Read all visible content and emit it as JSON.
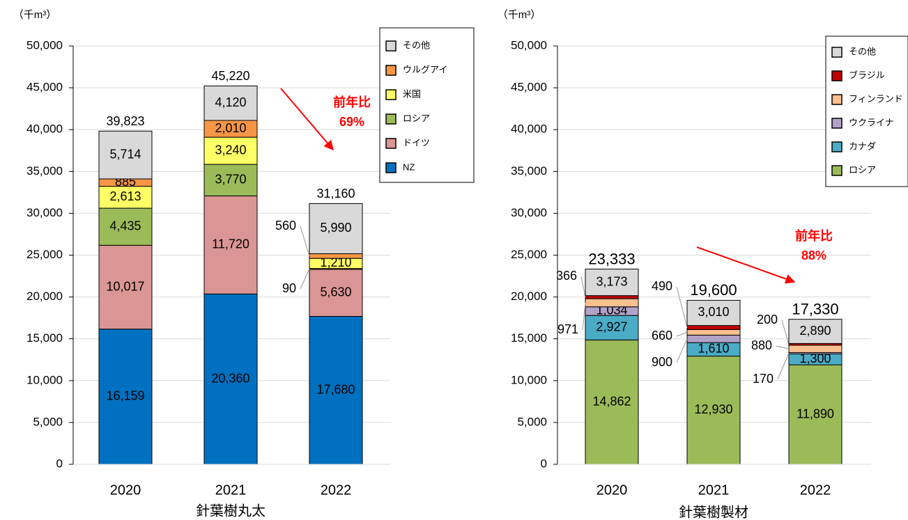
{
  "chart_data": [
    {
      "type": "bar",
      "stacked": true,
      "xlabel": "針葉樹丸太",
      "ylabel": "（千m³）",
      "categories": [
        "2020",
        "2021",
        "2022"
      ],
      "series": [
        {
          "name": "NZ",
          "color": "#0070c0",
          "values": [
            16159,
            20360,
            17680
          ],
          "value_labels": [
            "16,159",
            "20,360",
            "17,680"
          ]
        },
        {
          "name": "ドイツ",
          "color": "#da9694",
          "values": [
            10017,
            11720,
            5630
          ],
          "value_labels": [
            "10,017",
            "11,720",
            "5,630"
          ]
        },
        {
          "name": "ロシア",
          "color": "#9bbb59",
          "values": [
            4435,
            3770,
            90
          ],
          "value_labels": [
            "4,435",
            "3,770",
            "90"
          ]
        },
        {
          "name": "米国",
          "color": "#ffff66",
          "values": [
            2613,
            3240,
            1210
          ],
          "value_labels": [
            "2,613",
            "3,240",
            "1,210"
          ]
        },
        {
          "name": "ウルグアイ",
          "color": "#f79646",
          "values": [
            885,
            2010,
            560
          ],
          "value_labels": [
            "885",
            "2,010",
            "560"
          ]
        },
        {
          "name": "その他",
          "color": "#d9d9d9",
          "values": [
            5714,
            4120,
            5990
          ],
          "value_labels": [
            "5,714",
            "4,120",
            "5,990"
          ]
        }
      ],
      "totals": [
        39823,
        45220,
        31160
      ],
      "total_labels": [
        "39,823",
        "45,220",
        "31,160"
      ],
      "annotation": [
        "前年比",
        "69%"
      ],
      "ylim": [
        0,
        50000
      ],
      "yticks": [
        0,
        {
          "value": 5000,
          "label": "5,000"
        },
        {
          "value": 10000,
          "label": "10,000"
        },
        {
          "value": 15000,
          "label": "15,000"
        },
        {
          "value": 20000,
          "label": "20,000"
        },
        {
          "value": 25000,
          "label": "25,000"
        },
        {
          "value": 30000,
          "label": "30,000"
        },
        {
          "value": 35000,
          "label": "35,000"
        },
        {
          "value": 40000,
          "label": "40,000"
        },
        {
          "value": 45000,
          "label": "45,000"
        },
        {
          "value": 50000,
          "label": "50,000"
        }
      ],
      "grid": true,
      "legend": "upper right"
    },
    {
      "type": "bar",
      "stacked": true,
      "xlabel": "針葉樹製材",
      "ylabel": "（千m³）",
      "categories": [
        "2020",
        "2021",
        "2022"
      ],
      "series": [
        {
          "name": "ロシア",
          "color": "#9bbb59",
          "values": [
            14862,
            12930,
            11890
          ],
          "value_labels": [
            "14,862",
            "12,930",
            "11,890"
          ]
        },
        {
          "name": "カナダ",
          "color": "#4bacc6",
          "values": [
            2927,
            1610,
            1300
          ],
          "value_labels": [
            "2,927",
            "1,610",
            "1,300"
          ]
        },
        {
          "name": "ウクライナ",
          "color": "#b3a2c7",
          "values": [
            1034,
            900,
            170
          ],
          "value_labels": [
            "1,034",
            "900",
            "170"
          ]
        },
        {
          "name": "フィンランド",
          "color": "#fac090",
          "values": [
            971,
            660,
            880
          ],
          "value_labels": [
            "971",
            "660",
            "880"
          ]
        },
        {
          "name": "ブラジル",
          "color": "#c00000",
          "values": [
            366,
            490,
            200
          ],
          "value_labels": [
            "366",
            "490",
            "200"
          ]
        },
        {
          "name": "その他",
          "color": "#d9d9d9",
          "values": [
            3173,
            3010,
            2890
          ],
          "value_labels": [
            "3,173",
            "3,010",
            "2,890"
          ]
        }
      ],
      "totals": [
        23333,
        19600,
        17330
      ],
      "total_labels": [
        "23,333",
        "19,600",
        "17,330"
      ],
      "annotation": [
        "前年比",
        "88%"
      ],
      "ylim": [
        0,
        50000
      ],
      "yticks": [
        0,
        {
          "value": 5000,
          "label": "5,000"
        },
        {
          "value": 10000,
          "label": "10,000"
        },
        {
          "value": 15000,
          "label": "15,000"
        },
        {
          "value": 20000,
          "label": "20,000"
        },
        {
          "value": 25000,
          "label": "25,000"
        },
        {
          "value": 30000,
          "label": "30,000"
        },
        {
          "value": 35000,
          "label": "35,000"
        },
        {
          "value": 40000,
          "label": "40,000"
        },
        {
          "value": 45000,
          "label": "45,000"
        },
        {
          "value": 50000,
          "label": "50,000"
        }
      ],
      "grid": true,
      "legend": "upper right"
    }
  ]
}
